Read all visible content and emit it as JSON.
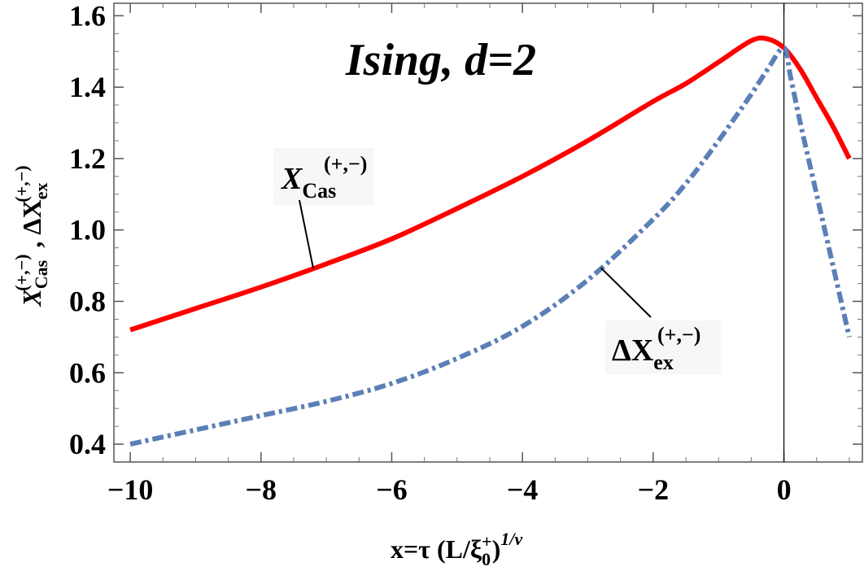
{
  "chart_data": {
    "type": "line",
    "title": "Ising, d=2",
    "xlabel": {
      "main": "x=τ (L/ξ",
      "sub": "0",
      "sup_plus": "+",
      "tail": ")",
      "exp": "1/ν"
    },
    "ylabel": {
      "s1_main": "X",
      "s1_sub": "Cas",
      "s1_sup": "(+,−)",
      "sep": " , ",
      "s2_main": "ΔX",
      "s2_sub": "ex",
      "s2_sup": "(+,−)"
    },
    "xlim": [
      -10.25,
      1.2
    ],
    "ylim": [
      0.35,
      1.635
    ],
    "x_ticks": [
      -10,
      -8,
      -6,
      -4,
      -2,
      0
    ],
    "x_tick_labels": [
      "−10",
      "−8",
      "−6",
      "−4",
      "−2",
      "0"
    ],
    "y_ticks": [
      0.4,
      0.6,
      0.8,
      1.0,
      1.2,
      1.4,
      1.6
    ],
    "y_tick_labels": [
      "0.4",
      "0.6",
      "0.8",
      "1.0",
      "1.2",
      "1.4",
      "1.6"
    ],
    "grid": false,
    "vertical_reference_line_x": 0,
    "series": [
      {
        "color": "#ff0000",
        "style": "solid",
        "x": [
          -10,
          -9,
          -8,
          -7,
          -6,
          -5,
          -4,
          -3,
          -2,
          -1.5,
          -1,
          -0.5,
          -0.25,
          0,
          0.25,
          0.5,
          0.75,
          1
        ],
        "y": [
          0.72,
          0.78,
          0.84,
          0.905,
          0.975,
          1.06,
          1.15,
          1.25,
          1.36,
          1.41,
          1.47,
          1.53,
          1.535,
          1.51,
          1.45,
          1.37,
          1.29,
          1.2
        ]
      },
      {
        "color": "#5b7fb7",
        "style": "dash-dot",
        "x": [
          -10,
          -9,
          -8,
          -7,
          -6,
          -5,
          -4,
          -3,
          -2,
          -1.5,
          -1,
          -0.5,
          -0.25,
          0,
          0.1,
          0.25,
          0.5,
          0.75,
          1
        ],
        "y": [
          0.4,
          0.44,
          0.48,
          0.52,
          0.57,
          0.64,
          0.73,
          0.86,
          1.03,
          1.13,
          1.25,
          1.38,
          1.45,
          1.51,
          1.43,
          1.3,
          1.1,
          0.9,
          0.7
        ]
      }
    ],
    "annotations": [
      {
        "name": "cas-annotation",
        "main": "X",
        "sub": "Cas",
        "sup": "(+,−)",
        "points_to_x": -7.2
      },
      {
        "name": "ex-annotation",
        "main": "ΔX",
        "sub": "ex",
        "sup": "(+,−)",
        "points_to_x": -2.8
      }
    ]
  }
}
